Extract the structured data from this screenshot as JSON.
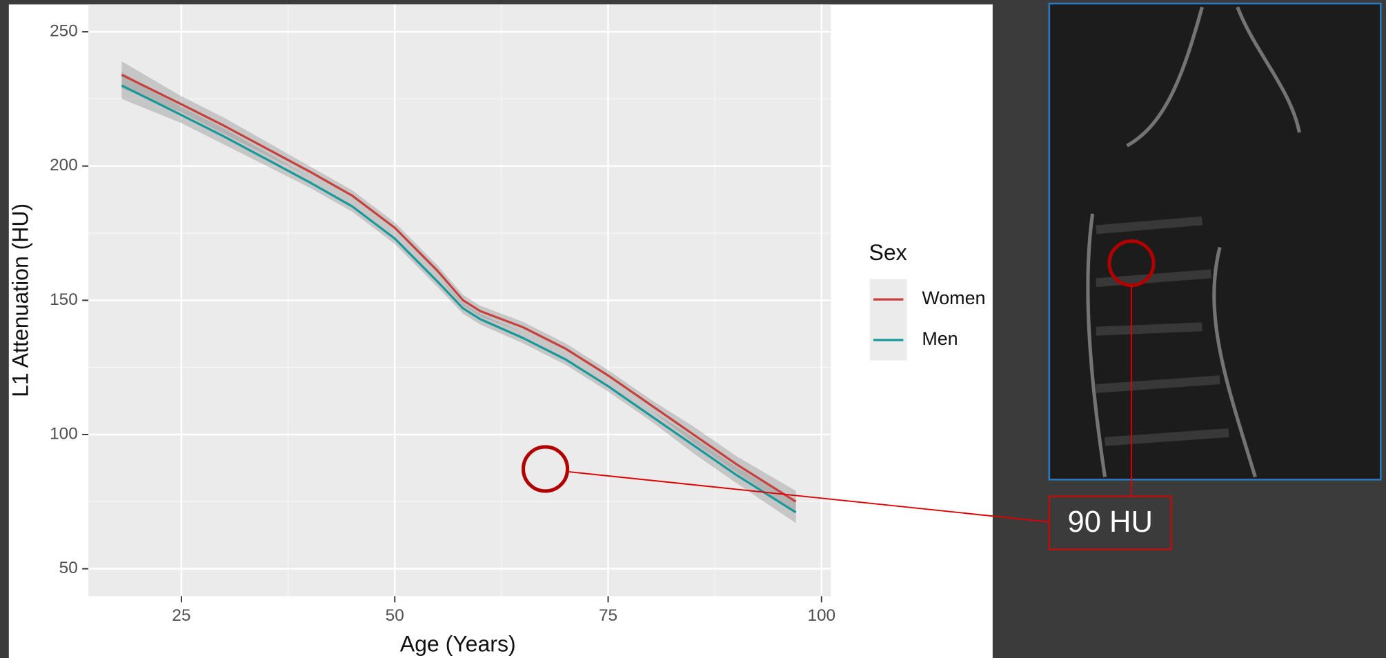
{
  "chart_data": {
    "type": "line",
    "x_label": "Age (Years)",
    "y_label": "L1 Attenuation (HU)",
    "x": [
      18,
      25,
      30,
      40,
      45,
      50,
      55,
      58,
      60,
      65,
      70,
      75,
      80,
      85,
      90,
      97
    ],
    "series": [
      {
        "name": "Women",
        "color": "#c8403c",
        "values": [
          234,
          223,
          215,
          198,
          189,
          177,
          161,
          150,
          146,
          140,
          132,
          122,
          111,
          100,
          89,
          75
        ],
        "lower": [
          229,
          220,
          212,
          196,
          187,
          175,
          159,
          148,
          144,
          138,
          130,
          120,
          109,
          97,
          86,
          71
        ],
        "upper": [
          239,
          226,
          218,
          200,
          191,
          179,
          163,
          152,
          148,
          142,
          134,
          124,
          113,
          103,
          92,
          79
        ]
      },
      {
        "name": "Men",
        "color": "#17999a",
        "values": [
          230,
          219,
          211,
          194,
          185,
          173,
          157,
          147,
          143,
          136,
          128,
          118,
          107,
          96,
          85,
          71
        ],
        "lower": [
          225,
          216,
          208,
          192,
          183,
          171,
          155,
          145,
          141,
          134,
          126,
          116,
          105,
          93,
          82,
          67
        ],
        "upper": [
          235,
          222,
          214,
          196,
          187,
          175,
          159,
          149,
          145,
          138,
          130,
          120,
          109,
          99,
          88,
          75
        ]
      }
    ],
    "xlim": [
      14.1,
      101.1
    ],
    "xticks": [
      25,
      50,
      75,
      100
    ],
    "ylim": [
      39.8,
      260.2
    ],
    "yticks": [
      50,
      100,
      150,
      200,
      250
    ],
    "grid": true,
    "legend_title": "Sex",
    "legend_position": "right",
    "annotation": "90 HU"
  }
}
